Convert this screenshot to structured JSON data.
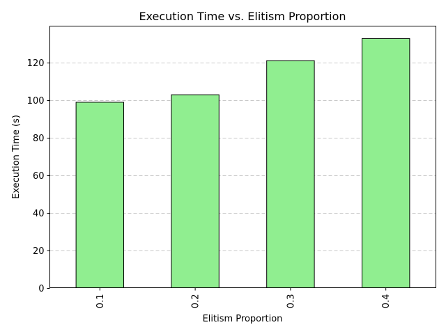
{
  "chart_data": {
    "type": "bar",
    "title": "Execution Time vs. Elitism Proportion",
    "xlabel": "Elitism Proportion",
    "ylabel": "Execution Time (s)",
    "categories": [
      "0.1",
      "0.2",
      "0.3",
      "0.4"
    ],
    "values": [
      99,
      103,
      121.2,
      133
    ],
    "ylim": [
      0,
      139.65
    ],
    "yticks": [
      0,
      20,
      40,
      60,
      80,
      100,
      120
    ],
    "grid": "y-dashed",
    "bar_color": "#90ee90",
    "bar_edge_color": "#000000",
    "xtick_rotation": 90
  }
}
